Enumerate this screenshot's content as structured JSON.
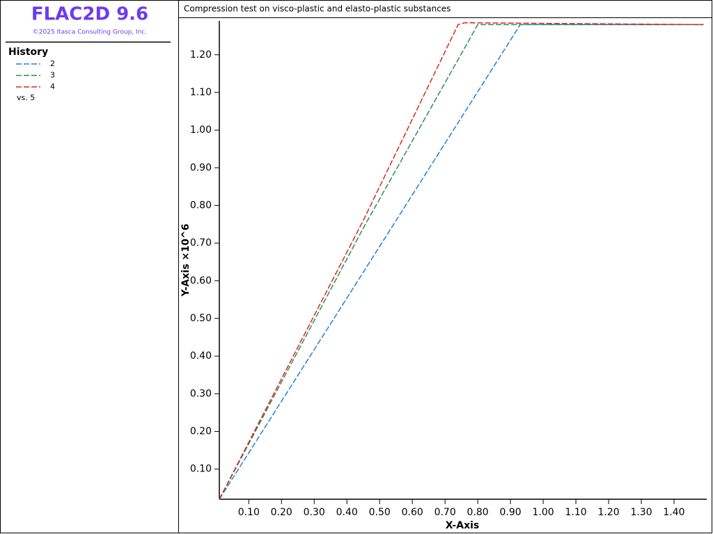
{
  "header": {
    "title": "FLAC2D 9.6",
    "copyright": "©2025 Itasca Consulting Group, Inc."
  },
  "legend": {
    "title": "History",
    "versus": "vs. 5"
  },
  "chart_data": {
    "type": "line",
    "title": "Compression test on visco-plastic and elasto-plastic substances",
    "xlabel": "X-Axis",
    "ylabel": "Y-Axis ×10^6",
    "xlim": [
      0.01,
      1.5
    ],
    "ylim": [
      0.02,
      1.29
    ],
    "xticks": [
      {
        "value": 0.1,
        "label": "0.10"
      },
      {
        "value": 0.2,
        "label": "0.20"
      },
      {
        "value": 0.3,
        "label": "0.30"
      },
      {
        "value": 0.4,
        "label": "0.40"
      },
      {
        "value": 0.5,
        "label": "0.50"
      },
      {
        "value": 0.6,
        "label": "0.60"
      },
      {
        "value": 0.7,
        "label": "0.70"
      },
      {
        "value": 0.8,
        "label": "0.80"
      },
      {
        "value": 0.9,
        "label": "0.90"
      },
      {
        "value": 1.0,
        "label": "1.00"
      },
      {
        "value": 1.1,
        "label": "1.10"
      },
      {
        "value": 1.2,
        "label": "1.20"
      },
      {
        "value": 1.3,
        "label": "1.30"
      },
      {
        "value": 1.4,
        "label": "1.40"
      }
    ],
    "yticks": [
      {
        "value": 0.1,
        "label": "0.10"
      },
      {
        "value": 0.2,
        "label": "0.20"
      },
      {
        "value": 0.3,
        "label": "0.30"
      },
      {
        "value": 0.4,
        "label": "0.40"
      },
      {
        "value": 0.5,
        "label": "0.50"
      },
      {
        "value": 0.6,
        "label": "0.60"
      },
      {
        "value": 0.7,
        "label": "0.70"
      },
      {
        "value": 0.8,
        "label": "0.80"
      },
      {
        "value": 0.9,
        "label": "0.90"
      },
      {
        "value": 1.0,
        "label": "1.00"
      },
      {
        "value": 1.1,
        "label": "1.10"
      },
      {
        "value": 1.2,
        "label": "1.20"
      }
    ],
    "series": [
      {
        "name": "2",
        "color": "#1f7fd6",
        "x": [
          0.01,
          0.93,
          1.49
        ],
        "values": [
          0.02,
          1.28,
          1.28
        ]
      },
      {
        "name": "3",
        "color": "#2e8b57",
        "x": [
          0.01,
          0.45,
          0.8,
          1.49
        ],
        "values": [
          0.02,
          0.74,
          1.28,
          1.28
        ]
      },
      {
        "name": "4",
        "color": "#d9251d",
        "x": [
          0.01,
          0.45,
          0.74,
          0.76,
          1.49
        ],
        "values": [
          0.02,
          0.76,
          1.28,
          1.285,
          1.28
        ]
      }
    ]
  }
}
